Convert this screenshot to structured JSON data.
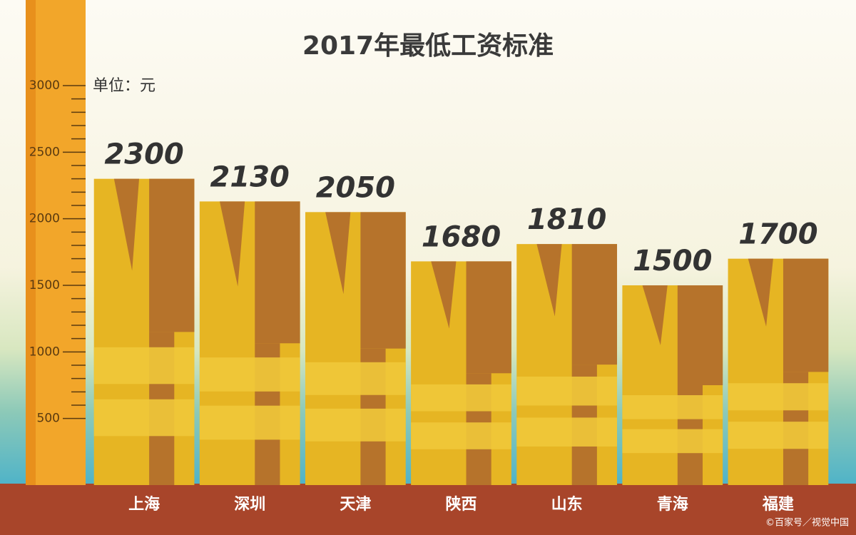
{
  "chart_data": {
    "type": "bar",
    "title": "2017年最低工资标准",
    "unit_label": "单位：元",
    "categories": [
      "上海",
      "深圳",
      "天津",
      "陕西",
      "山东",
      "青海",
      "福建"
    ],
    "values": [
      2300,
      2130,
      2050,
      1680,
      1810,
      1500,
      1700
    ],
    "color": "#e6b523",
    "ylim": [
      0,
      3000
    ],
    "yticks": [
      500,
      1000,
      1500,
      2000,
      2500,
      3000
    ],
    "watermark": "©百家号／视觉中国"
  }
}
